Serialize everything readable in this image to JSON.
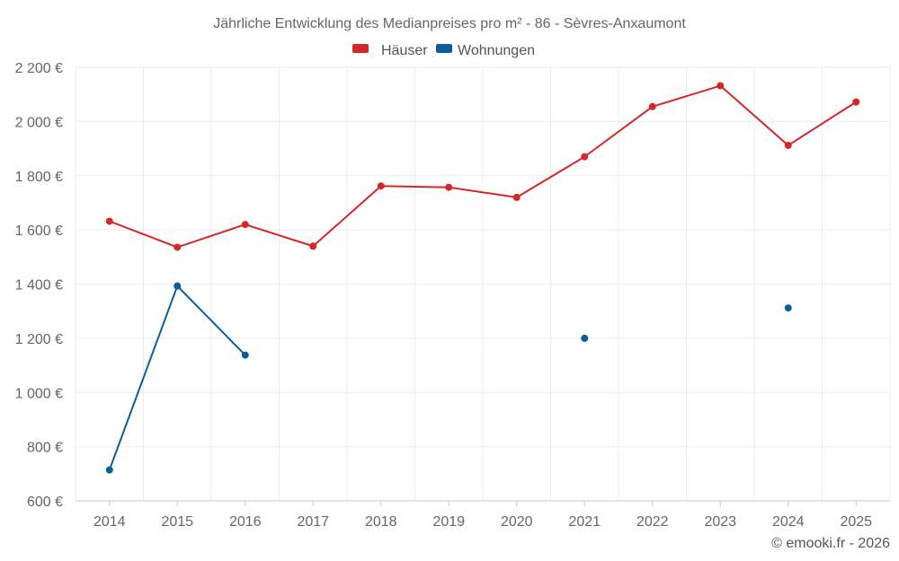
{
  "chart_data": {
    "type": "line",
    "title": "Jährliche Entwicklung des Medianpreises pro m² - 86 - Sèvres-Anxaumont",
    "categories": [
      "2014",
      "2015",
      "2016",
      "2017",
      "2018",
      "2019",
      "2020",
      "2021",
      "2022",
      "2023",
      "2024",
      "2025"
    ],
    "ylim": [
      600,
      2200
    ],
    "yticks": [
      600,
      800,
      1000,
      1200,
      1400,
      1600,
      1800,
      2000,
      2200
    ],
    "ytick_labels": [
      "600 €",
      "800 €",
      "1 000 €",
      "1 200 €",
      "1 400 €",
      "1 600 €",
      "1 800 €",
      "2 000 €",
      "2 200 €"
    ],
    "legend_position": "top-center",
    "grid": true,
    "series": [
      {
        "name": "Häuser",
        "color": "#d62728",
        "values": [
          1632,
          1536,
          1620,
          1540,
          1762,
          1757,
          1720,
          1870,
          2055,
          2132,
          1912,
          2072
        ]
      },
      {
        "name": "Wohnungen",
        "color": "#0b5e9a",
        "values": [
          714,
          1393,
          1138,
          null,
          null,
          null,
          null,
          1200,
          null,
          null,
          1312,
          null
        ]
      }
    ],
    "credit": "© emooki.fr - 2026"
  }
}
